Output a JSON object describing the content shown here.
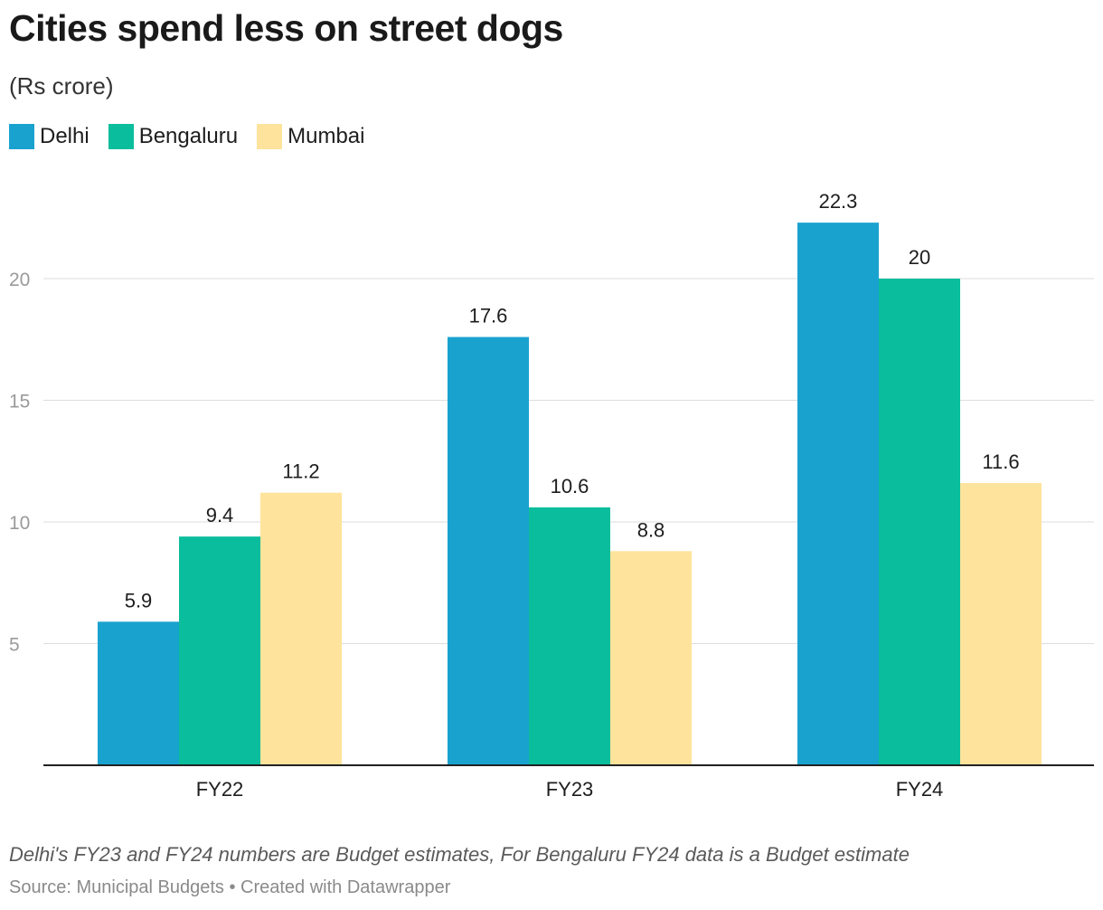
{
  "chart_data": {
    "type": "bar",
    "title": "Cities spend less on street dogs",
    "subtitle": "(Rs crore)",
    "categories": [
      "FY22",
      "FY23",
      "FY24"
    ],
    "series": [
      {
        "name": "Delhi",
        "color": "#1aa2cf",
        "values": [
          5.9,
          17.6,
          22.3
        ],
        "labels": [
          "5.9",
          "17.6",
          "22.3"
        ]
      },
      {
        "name": "Bengaluru",
        "color": "#0abd9d",
        "values": [
          9.4,
          10.6,
          20
        ],
        "labels": [
          "9.4",
          "10.6",
          "20"
        ]
      },
      {
        "name": "Mumbai",
        "color": "#fee39c",
        "values": [
          11.2,
          8.8,
          11.6
        ],
        "labels": [
          "11.2",
          "8.8",
          "11.6"
        ]
      }
    ],
    "ylim": [
      0,
      25
    ],
    "yticks": [
      5,
      10,
      15,
      20
    ],
    "ytick_labels": [
      "5",
      "10",
      "15",
      "20"
    ],
    "grid": true,
    "legend_position": "top-left",
    "note": "Delhi's FY23 and FY24 numbers are Budget estimates, For Bengaluru FY24 data is a Budget estimate",
    "source": "Source: Municipal Budgets • Created with Datawrapper"
  }
}
